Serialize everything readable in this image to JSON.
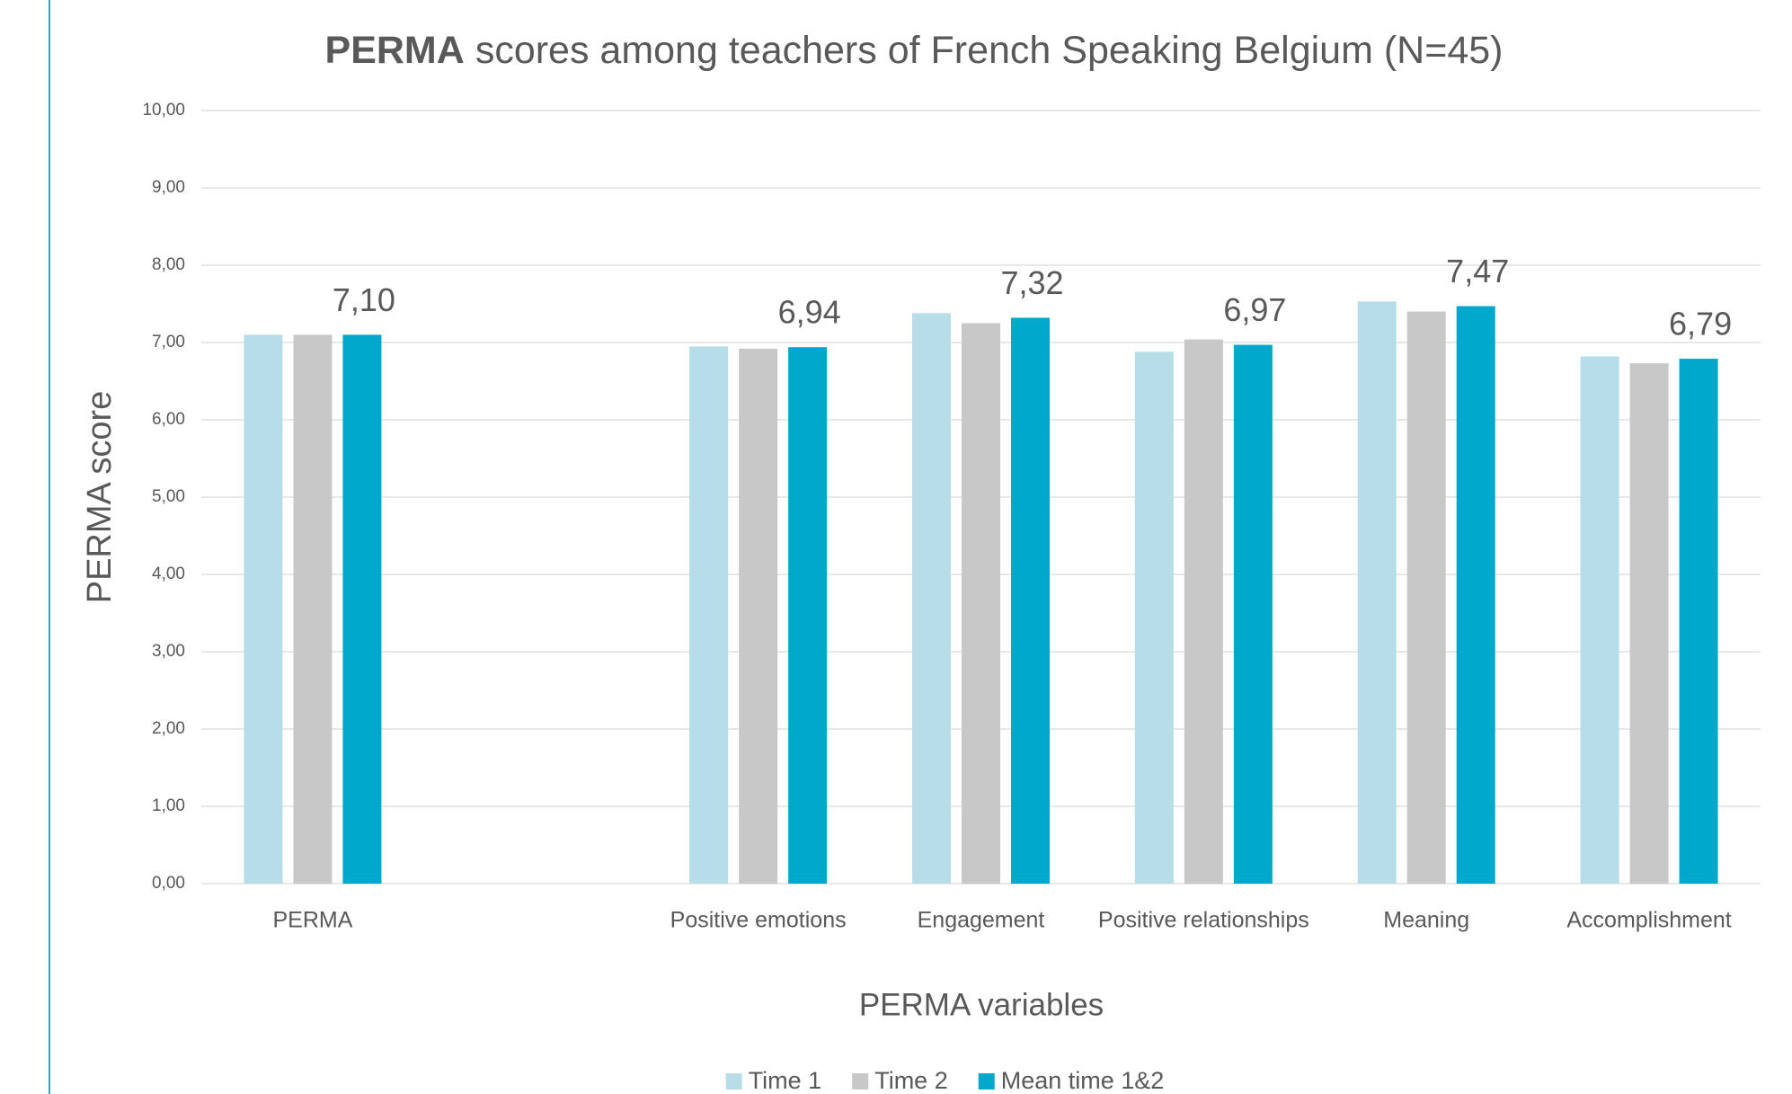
{
  "chart_data": {
    "type": "bar",
    "title": [
      "PERMA",
      "scores among teachers of French Speaking Belgium (N=45)"
    ],
    "x_label": "PERMA variables",
    "y_label": "PERMA score",
    "categories": [
      "PERMA",
      null,
      "Positive emotions",
      "Engagement",
      "Positive relationships",
      "Meaning",
      "Accomplishment"
    ],
    "series": [
      {
        "name": "Time 1",
        "color": "#b7dde8",
        "values": [
          7.1,
          null,
          6.95,
          7.38,
          6.88,
          7.53,
          6.82
        ]
      },
      {
        "name": "Time 2",
        "color": "#c8c8c8",
        "values": [
          7.1,
          null,
          6.92,
          7.25,
          7.04,
          7.4,
          6.73
        ]
      },
      {
        "name": "Mean time 1&2",
        "color": "#00a9cc",
        "values": [
          7.1,
          null,
          6.94,
          7.32,
          6.97,
          7.47,
          6.79
        ],
        "value_labels": [
          "7,10",
          null,
          "6,94",
          "7,32",
          "6,97",
          "7,47",
          "6,79"
        ]
      }
    ],
    "ylim": [
      0,
      10
    ],
    "yticks": [
      {
        "value": 0,
        "label": "0,00"
      },
      {
        "value": 1,
        "label": "1,00"
      },
      {
        "value": 2,
        "label": "2,00"
      },
      {
        "value": 3,
        "label": "3,00"
      },
      {
        "value": 4,
        "label": "4,00"
      },
      {
        "value": 5,
        "label": "5,00"
      },
      {
        "value": 6,
        "label": "6,00"
      },
      {
        "value": 7,
        "label": "7,00"
      },
      {
        "value": 8,
        "label": "8,00"
      },
      {
        "value": 9,
        "label": "9,00"
      },
      {
        "value": 10,
        "label": "10,00"
      }
    ],
    "grid": true,
    "legend": "bottom"
  }
}
